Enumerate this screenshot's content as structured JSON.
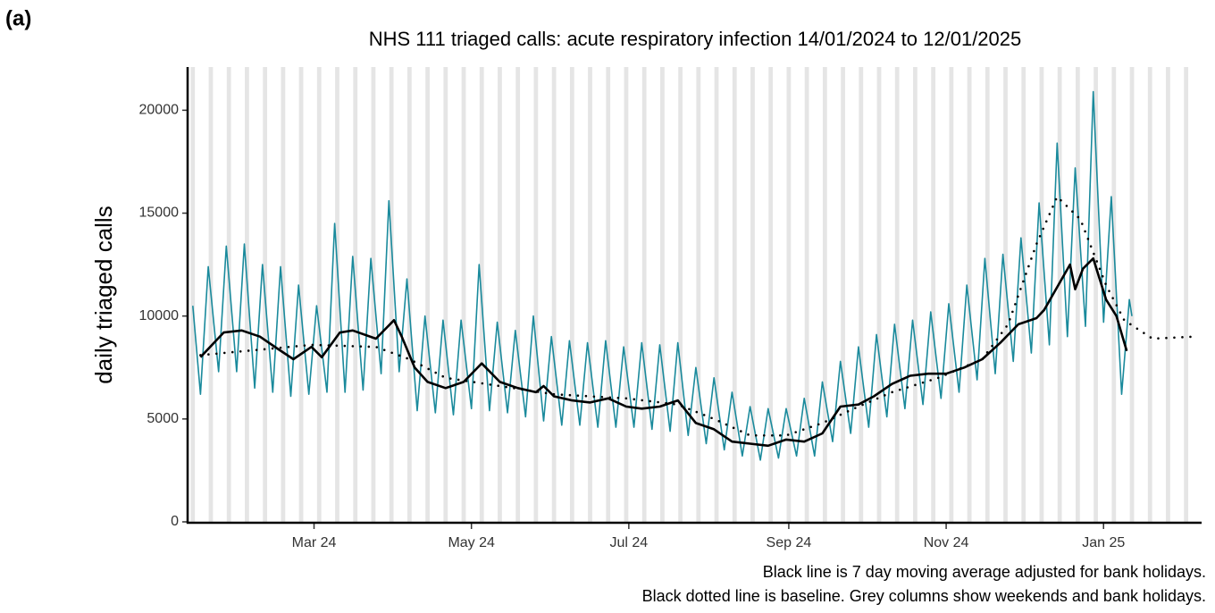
{
  "chart_data": {
    "type": "line",
    "panel_label": "(a)",
    "title": "NHS 111 triaged calls: acute respiratory infection 14/01/2024 to 12/01/2025",
    "y_label": "daily triaged calls",
    "notes": [
      "Black line is 7 day moving average adjusted for bank holidays.",
      "Black dotted line is baseline. Grey columns show weekends and bank holidays."
    ],
    "xlim": [
      -2,
      391
    ],
    "xticks": [
      {
        "value": 47,
        "label": "Mar 24"
      },
      {
        "value": 108,
        "label": "May 24"
      },
      {
        "value": 169,
        "label": "Jul 24"
      },
      {
        "value": 231,
        "label": "Sep 24"
      },
      {
        "value": 292,
        "label": "Nov 24"
      },
      {
        "value": 353,
        "label": "Jan 25"
      }
    ],
    "ylim": [
      0,
      22100
    ],
    "yticks": [
      0,
      5000,
      10000,
      15000,
      20000
    ],
    "series": [
      {
        "color": "#1a8a9c",
        "style": "solid",
        "width": 1.6,
        "x": [
          0,
          3,
          6,
          10,
          13,
          17,
          20,
          24,
          27,
          31,
          34,
          38,
          41,
          45,
          48,
          52,
          55,
          59,
          62,
          66,
          69,
          73,
          76,
          80,
          83,
          87,
          90,
          94,
          97,
          101,
          104,
          108,
          111,
          115,
          118,
          122,
          125,
          129,
          132,
          136,
          139,
          143,
          146,
          150,
          153,
          157,
          160,
          164,
          167,
          171,
          174,
          178,
          181,
          185,
          188,
          192,
          195,
          199,
          202,
          206,
          209,
          213,
          216,
          220,
          223,
          227,
          230,
          234,
          237,
          241,
          244,
          248,
          251,
          255,
          258,
          262,
          265,
          269,
          272,
          276,
          279,
          283,
          286,
          290,
          293,
          297,
          300,
          304,
          307,
          311,
          314,
          318,
          321,
          325,
          328,
          332,
          335,
          339,
          342,
          346,
          349,
          353,
          356,
          360,
          363,
          364
        ],
        "values": [
          10500,
          6200,
          12400,
          7300,
          13400,
          7300,
          13500,
          6500,
          12500,
          6300,
          12400,
          6100,
          11500,
          6200,
          10500,
          6300,
          14500,
          6300,
          12900,
          6400,
          12800,
          7200,
          15600,
          7300,
          11800,
          5400,
          10000,
          5300,
          9800,
          5200,
          9800,
          5500,
          12500,
          5400,
          9700,
          5300,
          9300,
          5100,
          10000,
          4900,
          9000,
          4700,
          8800,
          4700,
          8700,
          4600,
          8800,
          4600,
          8500,
          4600,
          8700,
          4500,
          8600,
          4400,
          8700,
          4200,
          7500,
          3800,
          7000,
          3500,
          6300,
          3200,
          5600,
          3000,
          5500,
          3100,
          5500,
          3200,
          6000,
          3200,
          6800,
          3900,
          7800,
          4300,
          8500,
          4600,
          9100,
          5100,
          9600,
          5500,
          9800,
          5700,
          10200,
          6000,
          10600,
          6300,
          11500,
          6900,
          12800,
          7200,
          13000,
          7800,
          13800,
          8200,
          15500,
          8600,
          18400,
          9000,
          17200,
          9500,
          20900,
          9700,
          15800,
          6200,
          10800,
          10000
        ]
      },
      {
        "color": "#000000",
        "style": "solid",
        "width": 2.6,
        "x": [
          3,
          12,
          19,
          26,
          33,
          39,
          46,
          50,
          57,
          62,
          71,
          78,
          81,
          86,
          91,
          98,
          105,
          112,
          119,
          126,
          133,
          136,
          140,
          147,
          154,
          161,
          168,
          174,
          181,
          188,
          195,
          202,
          209,
          216,
          223,
          230,
          237,
          244,
          251,
          258,
          264,
          271,
          278,
          285,
          292,
          299,
          306,
          313,
          320,
          327,
          330,
          335,
          340,
          342,
          345,
          349,
          354,
          358,
          362
        ],
        "values": [
          8000,
          9200,
          9300,
          9000,
          8400,
          7900,
          8500,
          8000,
          9200,
          9300,
          8900,
          9800,
          9000,
          7500,
          6800,
          6500,
          6800,
          7700,
          6800,
          6500,
          6300,
          6600,
          6100,
          5900,
          5800,
          6000,
          5600,
          5500,
          5600,
          5900,
          4800,
          4500,
          3900,
          3800,
          3700,
          4000,
          3900,
          4300,
          5600,
          5700,
          6100,
          6700,
          7100,
          7200,
          7200,
          7500,
          7900,
          8700,
          9600,
          9900,
          10300,
          11400,
          12500,
          11300,
          12300,
          12800,
          10800,
          10000,
          8300
        ]
      },
      {
        "color": "#000000",
        "style": "dotted",
        "width": 2.6,
        "x": [
          3,
          29,
          46,
          71,
          84,
          98,
          119,
          140,
          168,
          188,
          202,
          216,
          230,
          244,
          258,
          271,
          289,
          306,
          316,
          327,
          335,
          344,
          354,
          361,
          372,
          388
        ],
        "values": [
          8100,
          8400,
          8600,
          8500,
          7900,
          7000,
          6600,
          6200,
          6000,
          5700,
          5000,
          4200,
          4200,
          4800,
          5600,
          6300,
          7000,
          7900,
          9600,
          13500,
          15800,
          14700,
          11500,
          9800,
          8900,
          9000
        ]
      }
    ]
  }
}
